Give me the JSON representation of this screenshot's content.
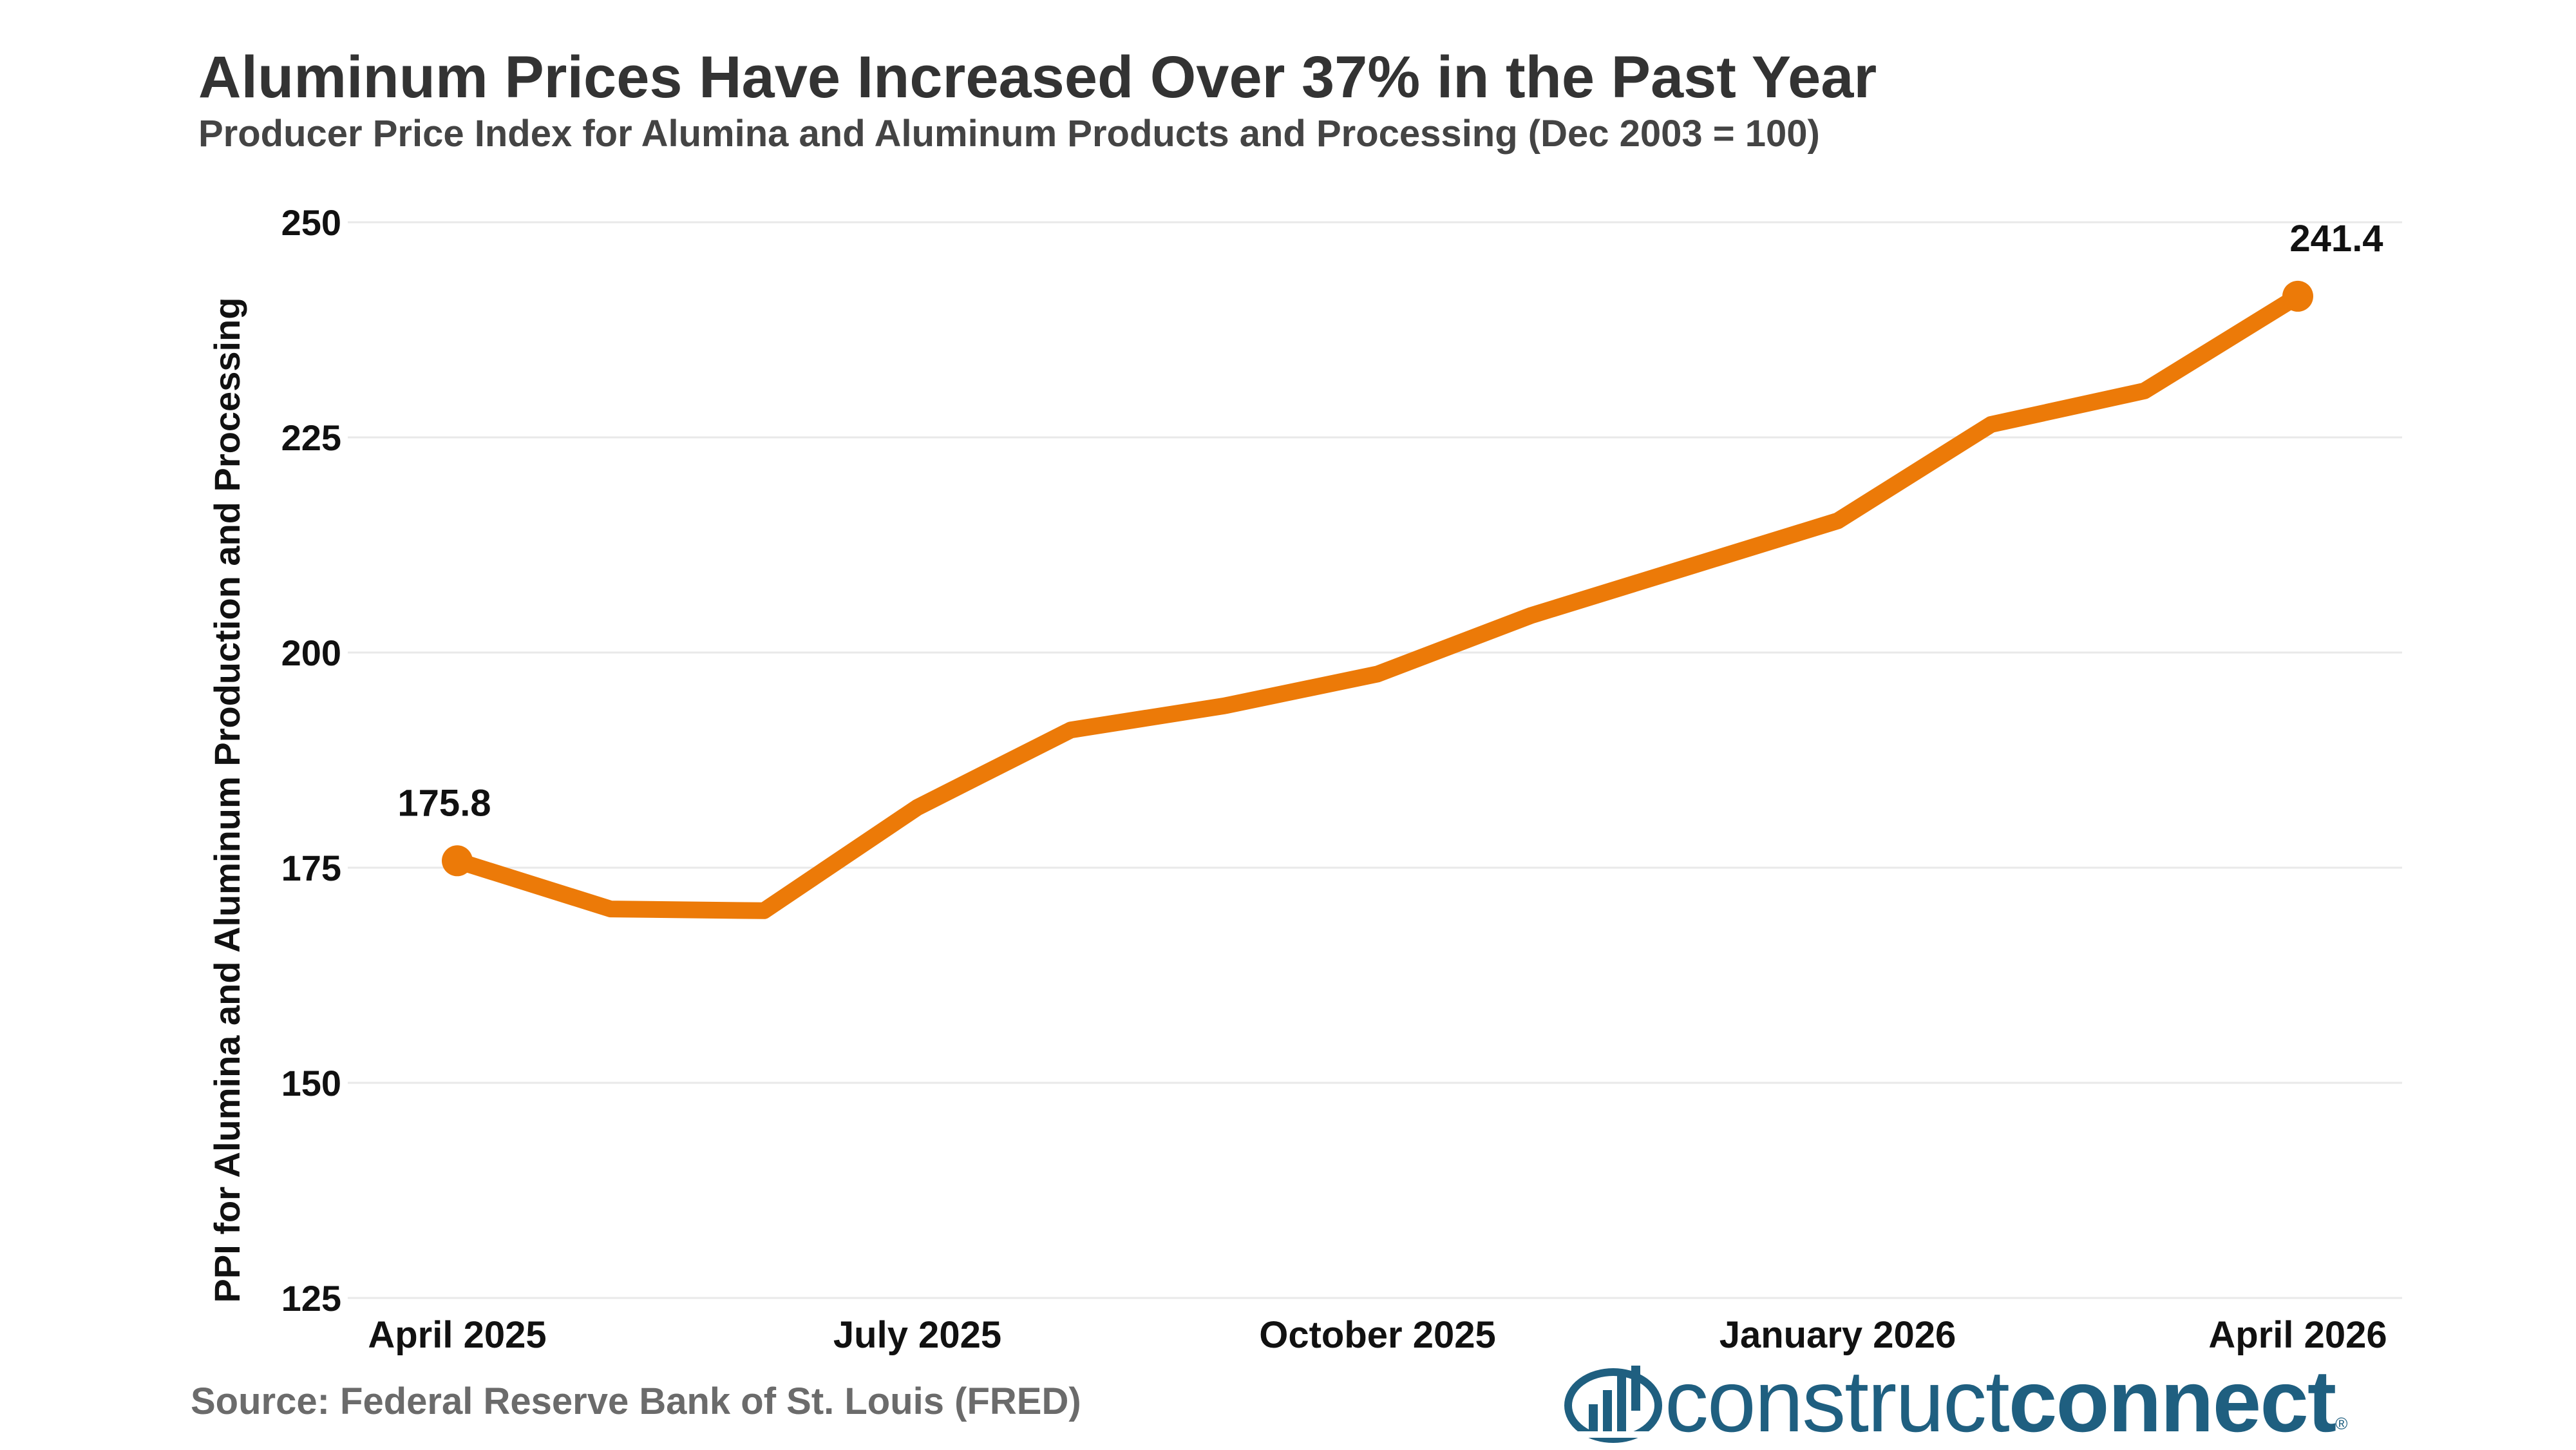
{
  "header": {
    "title": "Aluminum Prices Have Increased Over 37% in the Past Year",
    "subtitle": "Producer Price Index for Alumina and Aluminum Products and Processing (Dec 2003 = 100)"
  },
  "footer": {
    "source": "Source: Federal Reserve Bank of St. Louis (FRED)"
  },
  "logo": {
    "thin": "construct",
    "bold": "connect",
    "reg": "®",
    "icon": "building-chart-icon",
    "color": "#1f5f80"
  },
  "chart_data": {
    "type": "line",
    "title": "Aluminum Prices Have Increased Over 37% in the Past Year",
    "subtitle": "Producer Price Index for Alumina and Aluminum Products and Processing (Dec 2003 = 100)",
    "xlabel": "",
    "ylabel": "PPI for Alumina and Aluminum Production and Processing",
    "x": [
      "2025-04",
      "2025-05",
      "2025-06",
      "2025-07",
      "2025-08",
      "2025-09",
      "2025-10",
      "2025-11",
      "2025-12",
      "2026-01",
      "2026-02",
      "2026-03",
      "2026-04"
    ],
    "x_ticks": [
      {
        "x": "2025-04",
        "label": "April 2025"
      },
      {
        "x": "2025-07",
        "label": "July 2025"
      },
      {
        "x": "2025-10",
        "label": "October 2025"
      },
      {
        "x": "2026-01",
        "label": "January 2026"
      },
      {
        "x": "2026-04",
        "label": "April 2026"
      }
    ],
    "y_ticks": [
      125,
      150,
      175,
      200,
      225,
      250
    ],
    "ylim": [
      125,
      250
    ],
    "grid": true,
    "series": [
      {
        "values": [
          175.8,
          170.2,
          170.0,
          182.0,
          191.0,
          193.8,
          197.5,
          204.3,
          209.8,
          215.3,
          226.5,
          230.4,
          241.4
        ],
        "color": "#ec7a08"
      }
    ],
    "annotations": [
      {
        "x": "2025-04",
        "text": "175.8"
      },
      {
        "x": "2026-04",
        "text": "241.4"
      }
    ]
  }
}
